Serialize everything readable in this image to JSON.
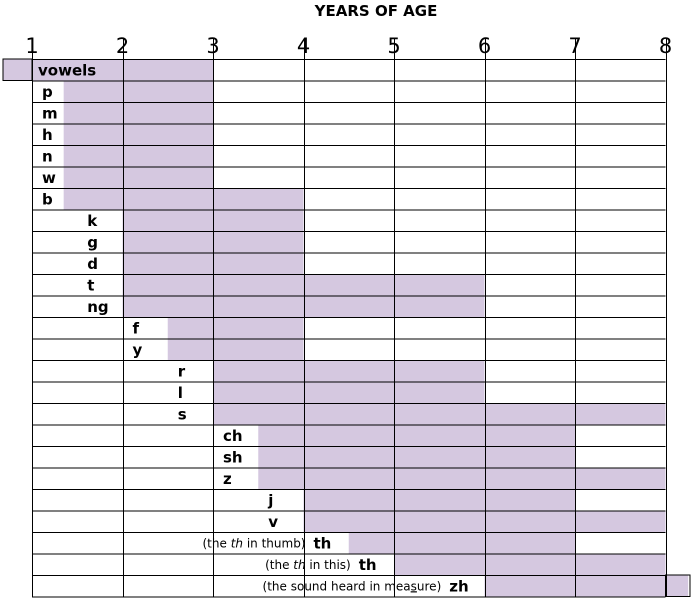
{
  "chart_data": {
    "type": "bar",
    "title": "YEARS OF AGE",
    "xlim": [
      1,
      8
    ],
    "x_ticks": [
      "1",
      "2",
      "3",
      "4",
      "5",
      "6",
      "7",
      "8"
    ],
    "bar_color": "#d5c8e0",
    "grid": true,
    "series": [
      {
        "label": "vowels",
        "start": 1,
        "end": 3,
        "label_at": 1
      },
      {
        "label": "p",
        "start": 1.35,
        "end": 3,
        "label_at": 1
      },
      {
        "label": "m",
        "start": 1.35,
        "end": 3,
        "label_at": 1
      },
      {
        "label": "h",
        "start": 1.35,
        "end": 3,
        "label_at": 1
      },
      {
        "label": "n",
        "start": 1.35,
        "end": 3,
        "label_at": 1
      },
      {
        "label": "w",
        "start": 1.35,
        "end": 3,
        "label_at": 1
      },
      {
        "label": "b",
        "start": 1.35,
        "end": 4,
        "label_at": 1
      },
      {
        "label": "k",
        "start": 2,
        "end": 4,
        "label_at": 1.5
      },
      {
        "label": "g",
        "start": 2,
        "end": 4,
        "label_at": 1.5
      },
      {
        "label": "d",
        "start": 2,
        "end": 4,
        "label_at": 1.5
      },
      {
        "label": "t",
        "start": 2,
        "end": 6,
        "label_at": 1.5
      },
      {
        "label": "ng",
        "start": 2,
        "end": 6,
        "label_at": 1.5
      },
      {
        "label": "f",
        "start": 2.5,
        "end": 4,
        "label_at": 2
      },
      {
        "label": "y",
        "start": 2.5,
        "end": 4,
        "label_at": 2
      },
      {
        "label": "r",
        "start": 3,
        "end": 6,
        "label_at": 2.5
      },
      {
        "label": "l",
        "start": 3,
        "end": 6,
        "label_at": 2.5
      },
      {
        "label": "s",
        "start": 3,
        "end": 8,
        "label_at": 2.5
      },
      {
        "label": "ch",
        "start": 3.5,
        "end": 7,
        "label_at": 3
      },
      {
        "label": "sh",
        "start": 3.5,
        "end": 7,
        "label_at": 3
      },
      {
        "label": "z",
        "start": 3.5,
        "end": 8,
        "label_at": 3
      },
      {
        "label": "j",
        "start": 4,
        "end": 7,
        "label_at": 3.5
      },
      {
        "label": "v",
        "start": 4,
        "end": 8,
        "label_at": 3.5
      },
      {
        "label": "th",
        "note": [
          "(the ",
          "th",
          " in thumb)"
        ],
        "start": 4.5,
        "end": 7,
        "label_at": 4
      },
      {
        "label": "th",
        "note": [
          "(the ",
          "th",
          " in this)"
        ],
        "start": 5,
        "end": 8,
        "label_at": 4.5
      },
      {
        "label": "zh",
        "note": [
          "(the sound heard in mea",
          "s",
          "ure)"
        ],
        "start": 6,
        "end": 8.25,
        "label_at": 5.5
      }
    ]
  }
}
